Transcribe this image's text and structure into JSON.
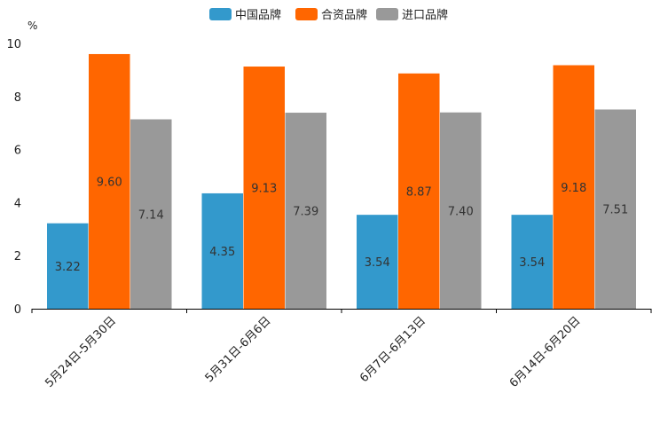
{
  "chart_data": {
    "type": "bar",
    "unit": "%",
    "categories": [
      "5月24日-5月30日",
      "5月31日-6月6日",
      "6月7日-6月13日",
      "6月14日-6月20日"
    ],
    "series": [
      {
        "name": "中国品牌",
        "color": "#3399cc",
        "values": [
          3.22,
          4.35,
          3.54,
          3.54
        ],
        "labels": [
          "3.22",
          "4.35",
          "3.54",
          "3.54"
        ]
      },
      {
        "name": "合资品牌",
        "color": "#ff6600",
        "values": [
          9.6,
          9.13,
          8.87,
          9.18
        ],
        "labels": [
          "9.60",
          "9.13",
          "8.87",
          "9.18"
        ]
      },
      {
        "name": "进口品牌",
        "color": "#999999",
        "values": [
          7.14,
          7.39,
          7.4,
          7.51
        ],
        "labels": [
          "7.14",
          "7.39",
          "7.40",
          "7.51"
        ]
      }
    ],
    "yticks": [
      "0",
      "2",
      "4",
      "6",
      "8",
      "10"
    ],
    "ylim": [
      0,
      10
    ],
    "legend_position": "top-center"
  }
}
